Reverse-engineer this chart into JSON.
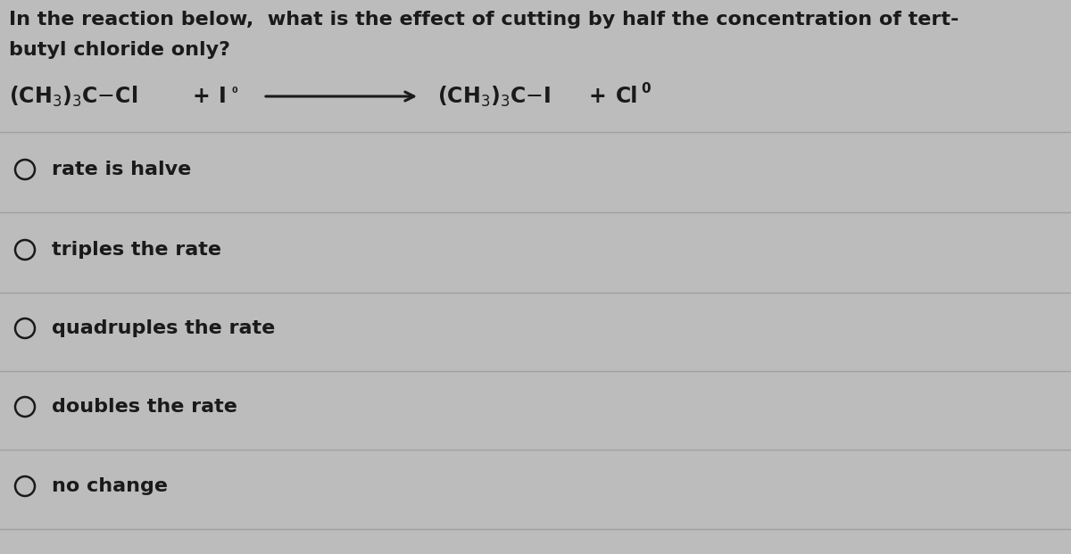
{
  "background_color": "#bcbcbc",
  "text_color": "#1a1a1a",
  "line_color": "#a0a0a0",
  "question_line1": "In the reaction below,  what is the effect of cutting by half the concentration of tert-",
  "question_line2": "butyl chloride only?",
  "options": [
    "rate is halve",
    "triples the rate",
    "quadruples the rate",
    "doubles the rate",
    "no change"
  ],
  "font_size_question": 16,
  "font_size_reaction": 17,
  "font_size_options": 16,
  "fig_width": 12.0,
  "fig_height": 6.21,
  "dpi": 100
}
